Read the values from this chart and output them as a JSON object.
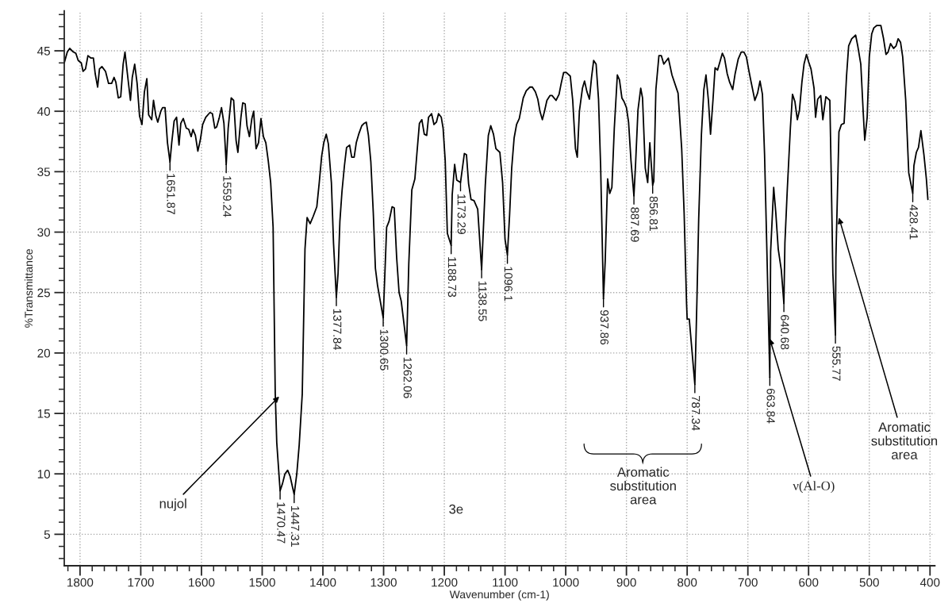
{
  "chart_data": {
    "type": "line",
    "xlabel": "Wavenumber (cm-1)",
    "ylabel": "%Transmittance",
    "xlim": [
      1826,
      392
    ],
    "ylim": [
      2.4,
      48.3
    ],
    "xticks": [
      1800,
      1700,
      1600,
      1500,
      1400,
      1300,
      1200,
      1100,
      1000,
      900,
      800,
      700,
      600,
      500,
      400
    ],
    "yticks": [
      5,
      10,
      15,
      20,
      25,
      30,
      35,
      40,
      45
    ],
    "grid": true,
    "series": [
      {
        "color": "#000000",
        "line_style": "solid",
        "x": [
          1826,
          1821,
          1817,
          1811,
          1807,
          1803,
          1798,
          1795,
          1791,
          1787,
          1782,
          1778,
          1775,
          1771,
          1768,
          1764,
          1758,
          1753,
          1748,
          1744,
          1741,
          1737,
          1733,
          1729,
          1726,
          1722,
          1717,
          1714,
          1710,
          1706,
          1702,
          1698,
          1694,
          1690,
          1687,
          1682,
          1679,
          1675,
          1672,
          1667,
          1664,
          1660,
          1656,
          1651.87,
          1649,
          1645,
          1641,
          1637,
          1634,
          1630,
          1625,
          1621,
          1617,
          1614,
          1610,
          1606,
          1602,
          1598,
          1593,
          1586,
          1582,
          1578,
          1575,
          1571,
          1567,
          1563,
          1559.24,
          1556,
          1551,
          1547,
          1543,
          1540,
          1535,
          1532,
          1528,
          1525,
          1521,
          1517,
          1514,
          1510,
          1506,
          1502,
          1498,
          1494,
          1490,
          1486,
          1482,
          1478.5,
          1476,
          1470.47,
          1466.5,
          1462.5,
          1458,
          1454,
          1450,
          1447.31,
          1443,
          1439,
          1434,
          1429.5,
          1426,
          1421,
          1416,
          1410,
          1406,
          1402,
          1398.5,
          1394.5,
          1391,
          1386,
          1382.5,
          1377.84,
          1375,
          1372,
          1368.5,
          1364.5,
          1361,
          1356,
          1352.5,
          1348.5,
          1345,
          1341,
          1336,
          1332,
          1328.5,
          1325,
          1321,
          1317,
          1313.5,
          1310,
          1300.65,
          1295,
          1291,
          1286,
          1282.5,
          1278.5,
          1274.5,
          1271,
          1262.06,
          1258.5,
          1253.5,
          1248.5,
          1245,
          1241,
          1237,
          1233,
          1229,
          1226,
          1221,
          1217,
          1213,
          1209.5,
          1205,
          1202,
          1198.5,
          1195,
          1188.73,
          1187,
          1183,
          1179.5,
          1173.29,
          1172,
          1167,
          1163.5,
          1160,
          1156,
          1151,
          1145,
          1138.55,
          1132.5,
          1127.5,
          1123.5,
          1119,
          1115,
          1108.5,
          1104,
          1100,
          1096.1,
          1092.5,
          1089,
          1085,
          1081,
          1076.5,
          1070,
          1065,
          1059,
          1055,
          1050,
          1046,
          1042.5,
          1038.5,
          1035,
          1031,
          1026,
          1022.5,
          1016,
          1011,
          1007.5,
          1003.5,
          999,
          992.5,
          988.5,
          984,
          981,
          977.5,
          972.5,
          969,
          965,
          961,
          957.5,
          954,
          950,
          946,
          942.5,
          937.86,
          935,
          931,
          927.5,
          924,
          920,
          915,
          911.5,
          907.5,
          904,
          900,
          896.5,
          892.5,
          887.69,
          885,
          881,
          876.5,
          873.5,
          869,
          865,
          861.5,
          856.81,
          855,
          851.5,
          846.5,
          842.5,
          838.5,
          831,
          825,
          815,
          809,
          805,
          801,
          800,
          796.5,
          787.34,
          784,
          781,
          776.5,
          772.5,
          769,
          765,
          761.5,
          757.5,
          754,
          750,
          746.5,
          742,
          738.5,
          734,
          730,
          725,
          721,
          716,
          711,
          706.5,
          702.5,
          698.5,
          695,
          688.5,
          684,
          680,
          676,
          672.5,
          669,
          663.84,
          662.5,
          657.5,
          654,
          650,
          645,
          640.68,
          639,
          635,
          630,
          626.5,
          622.5,
          618.5,
          615,
          611,
          607.5,
          603.5,
          600,
          596,
          591,
          588.5,
          585,
          580,
          576.5,
          571.5,
          565,
          562.5,
          560,
          555.77,
          555,
          550,
          546,
          541.5,
          537.5,
          534,
          529,
          522.5,
          519,
          514,
          510,
          507.5,
          503.5,
          500,
          496,
          492.5,
          487.5,
          481,
          476.5,
          472.5,
          469,
          465,
          460,
          456,
          452.5,
          448.5,
          445,
          440,
          435,
          428.41,
          426.5,
          422.5,
          419,
          415,
          410,
          406,
          403.5
        ],
        "values": [
          44.0,
          44.9,
          45.2,
          44.9,
          44.8,
          44.2,
          44.0,
          43.3,
          43.5,
          44.6,
          44.4,
          44.4,
          43.1,
          42.0,
          43.5,
          43.7,
          43.3,
          42.3,
          42.3,
          42.8,
          42.4,
          41.1,
          41.2,
          43.9,
          44.9,
          43.1,
          40.9,
          42.8,
          43.9,
          42.3,
          39.6,
          38.9,
          41.6,
          42.7,
          39.7,
          39.3,
          40.9,
          39.6,
          39.1,
          40.0,
          40.3,
          40.3,
          37.4,
          35.8,
          37.4,
          39.2,
          39.5,
          37.2,
          39.0,
          39.4,
          38.6,
          38.5,
          37.9,
          38.5,
          38.0,
          36.7,
          37.6,
          38.9,
          39.5,
          39.9,
          39.8,
          38.6,
          38.7,
          39.4,
          40.3,
          39.0,
          35.6,
          38.6,
          41.1,
          40.9,
          37.6,
          36.6,
          39.5,
          40.7,
          40.6,
          38.8,
          37.9,
          39.4,
          40.0,
          36.9,
          37.4,
          39.4,
          37.9,
          37.4,
          35.9,
          34.1,
          30.4,
          16.7,
          12.6,
          8.6,
          9.2,
          10.0,
          10.3,
          9.8,
          8.9,
          8.3,
          10.0,
          12.4,
          16.6,
          28.6,
          31.2,
          30.7,
          31.3,
          32.1,
          34.1,
          36.3,
          37.4,
          38.1,
          37.3,
          34.1,
          29.1,
          24.6,
          26.6,
          30.9,
          33.4,
          35.5,
          37.0,
          37.2,
          36.2,
          36.2,
          37.4,
          38.1,
          38.8,
          39.0,
          39.1,
          38.0,
          35.8,
          31.6,
          27.0,
          25.6,
          22.9,
          30.4,
          30.9,
          32.1,
          32.0,
          27.9,
          25.0,
          24.3,
          20.6,
          27.4,
          33.5,
          34.4,
          36.6,
          39.0,
          39.3,
          38.1,
          38.0,
          39.5,
          39.8,
          38.9,
          39.1,
          39.8,
          39.5,
          38.6,
          35.9,
          29.9,
          28.9,
          33.1,
          35.6,
          34.3,
          34.1,
          34.6,
          36.5,
          36.4,
          34.0,
          32.7,
          32.6,
          31.9,
          26.9,
          33.9,
          38.0,
          38.8,
          38.1,
          36.9,
          36.6,
          34.1,
          29.4,
          28.1,
          31.4,
          35.3,
          37.8,
          38.9,
          39.4,
          41.1,
          41.7,
          42.0,
          42.0,
          41.6,
          41.0,
          40.0,
          39.3,
          40.0,
          40.9,
          41.3,
          41.3,
          40.9,
          41.4,
          42.3,
          43.2,
          43.2,
          42.9,
          40.9,
          36.9,
          36.2,
          40.0,
          41.9,
          42.5,
          41.6,
          41.0,
          42.8,
          44.2,
          43.9,
          41.0,
          35.4,
          24.5,
          27.6,
          34.4,
          33.2,
          33.7,
          38.6,
          43.0,
          42.6,
          41.1,
          40.8,
          40.3,
          39.1,
          35.9,
          33.0,
          35.6,
          40.1,
          41.9,
          41.1,
          35.3,
          34.1,
          37.4,
          33.9,
          34.2,
          41.8,
          44.6,
          44.6,
          43.9,
          44.4,
          43.0,
          41.5,
          36.9,
          31.6,
          24.1,
          22.8,
          22.8,
          17.4,
          24.2,
          31.1,
          38.1,
          41.8,
          43.0,
          40.9,
          38.1,
          40.9,
          43.6,
          43.4,
          44.0,
          44.8,
          44.4,
          43.1,
          42.4,
          41.8,
          43.1,
          44.3,
          44.9,
          44.9,
          44.5,
          43.4,
          42.5,
          40.9,
          41.5,
          42.5,
          41.4,
          36.4,
          29.1,
          18.0,
          28.4,
          33.7,
          31.6,
          28.6,
          26.9,
          24.1,
          29.1,
          33.6,
          38.6,
          41.4,
          40.8,
          39.3,
          40.1,
          42.4,
          43.9,
          44.7,
          44.1,
          43.5,
          41.9,
          39.5,
          41.0,
          41.3,
          39.3,
          41.2,
          40.9,
          34.1,
          26.6,
          21.5,
          27.9,
          38.3,
          38.9,
          39.0,
          42.9,
          45.4,
          46.0,
          46.3,
          45.4,
          43.9,
          39.9,
          37.6,
          39.5,
          44.5,
          46.4,
          46.9,
          47.1,
          47.1,
          46.0,
          44.7,
          44.9,
          45.6,
          45.2,
          45.4,
          46.0,
          45.7,
          44.5,
          40.9,
          34.9,
          33.2,
          35.5,
          36.6,
          37.0,
          38.4,
          36.4,
          34.4,
          32.7
        ]
      }
    ],
    "annotations": [
      {
        "text": "1651.87",
        "x": 1651.87,
        "y": 35.8
      },
      {
        "text": "1559.24",
        "x": 1559.24,
        "y": 35.6
      },
      {
        "text": "1470.47",
        "x": 1470.47,
        "y": 8.6
      },
      {
        "text": "1447.31",
        "x": 1447.31,
        "y": 8.3
      },
      {
        "text": "1377.84",
        "x": 1377.84,
        "y": 24.6
      },
      {
        "text": "1300.65",
        "x": 1300.65,
        "y": 22.9
      },
      {
        "text": "1262.06",
        "x": 1262.06,
        "y": 20.6
      },
      {
        "text": "1188.73",
        "x": 1188.73,
        "y": 28.9
      },
      {
        "text": "1173.29",
        "x": 1173.29,
        "y": 34.1
      },
      {
        "text": "1138.55",
        "x": 1138.55,
        "y": 26.9
      },
      {
        "text": "1096.1",
        "x": 1096.1,
        "y": 28.1
      },
      {
        "text": "937.86",
        "x": 937.86,
        "y": 24.5
      },
      {
        "text": "887.69",
        "x": 887.69,
        "y": 33.0
      },
      {
        "text": "856.81",
        "x": 856.81,
        "y": 33.9
      },
      {
        "text": "787.34",
        "x": 787.34,
        "y": 17.4
      },
      {
        "text": "663.84",
        "x": 663.84,
        "y": 18.0
      },
      {
        "text": "640.68",
        "x": 640.68,
        "y": 24.1
      },
      {
        "text": "555.77",
        "x": 555.77,
        "y": 21.5
      },
      {
        "text": "428.41",
        "x": 428.41,
        "y": 33.2
      },
      {
        "text": "nujol",
        "x": 1472,
        "y": 16.4
      },
      "3e",
      "Aromatic\nsubstitution\narea",
      {
        "text": "ν(Al-O)",
        "x": 664,
        "y": 21.2
      },
      {
        "text": "Aromatic\nsubstitution\narea",
        "x": 550,
        "y": 31.2
      }
    ]
  }
}
